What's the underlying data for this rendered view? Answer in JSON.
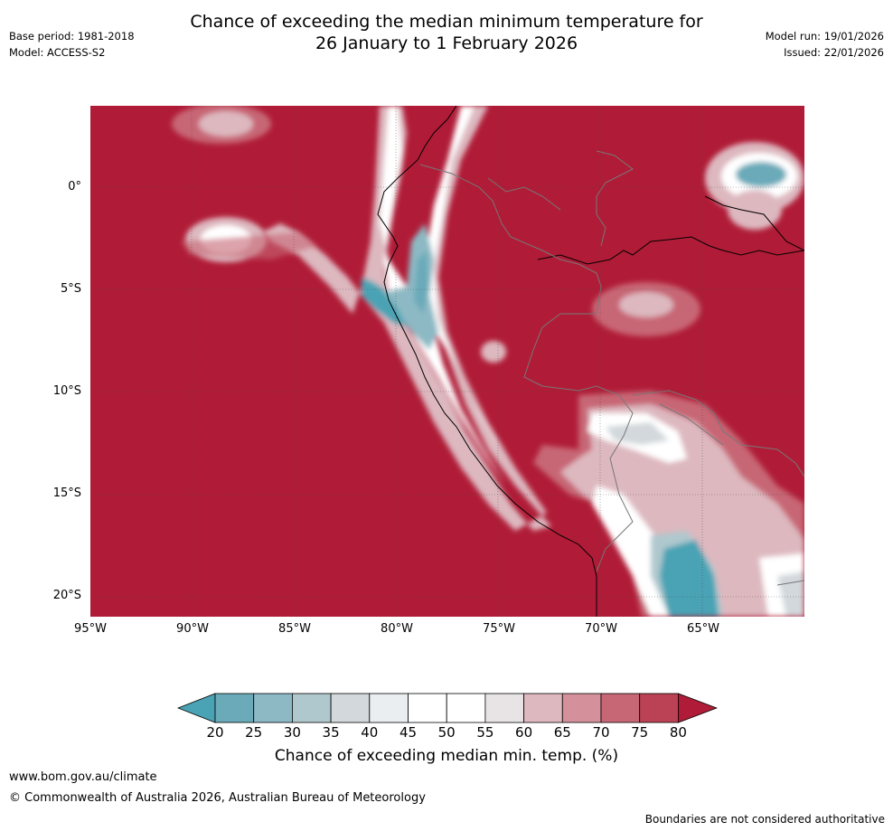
{
  "title_line1": "Chance of exceeding the median minimum temperature for",
  "title_line2": "26 January to 1 February 2026",
  "base_period": "Base period: 1981-2018",
  "model": "Model: ACCESS-S2",
  "model_run": "Model run: 19/01/2026",
  "issued": "Issued: 22/01/2026",
  "map": {
    "lat_labels": [
      "0°",
      "5°S",
      "10°S",
      "15°S",
      "20°S"
    ],
    "lon_labels": [
      "95°W",
      "90°W",
      "85°W",
      "80°W",
      "75°W",
      "70°W",
      "65°W"
    ],
    "background_color": "#b01c37"
  },
  "colorbar": {
    "ticks": [
      "20",
      "25",
      "30",
      "35",
      "40",
      "45",
      "50",
      "55",
      "60",
      "65",
      "70",
      "75",
      "80"
    ],
    "colors": [
      "#4aa3b4",
      "#6aaab9",
      "#8cb9c4",
      "#afc8ce",
      "#d2d8db",
      "#eaeef0",
      "#ffffff",
      "#ffffff",
      "#e8e4e6",
      "#ddb8bf",
      "#d4909b",
      "#c76675",
      "#bb4255",
      "#b01c37"
    ],
    "title": "Chance of exceeding median min. temp. (%)"
  },
  "footer": {
    "url": "www.bom.gov.au/climate",
    "copyright": "© Commonwealth of Australia 2026, Australian Bureau of Meteorology",
    "disclaimer": "Boundaries are not considered authoritative"
  }
}
